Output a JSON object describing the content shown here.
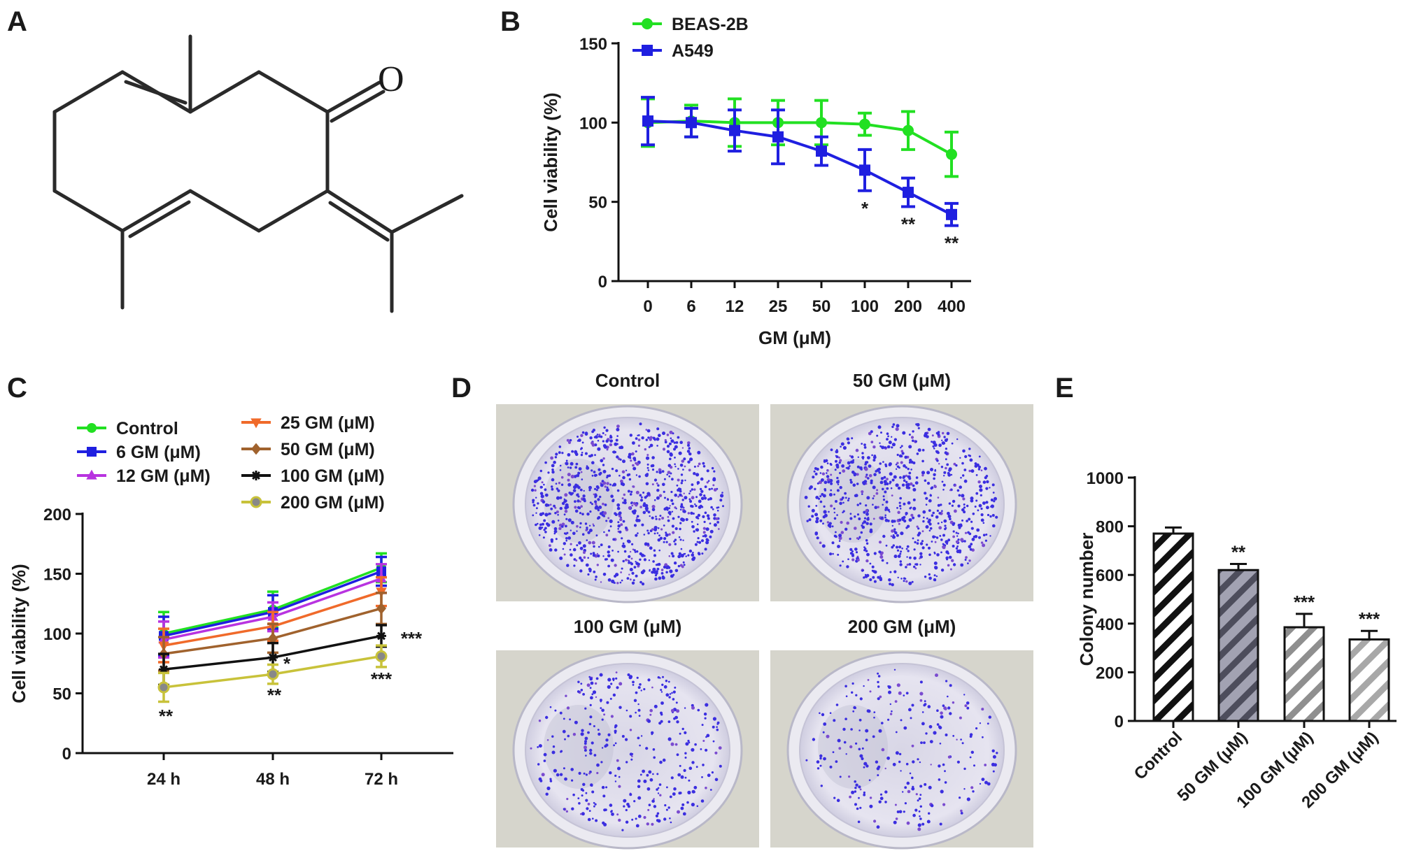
{
  "panels": {
    "A": "A",
    "B": "B",
    "C": "C",
    "D": "D",
    "E": "E"
  },
  "panel_a": {
    "atom_label": "O"
  },
  "colors": {
    "beas2b": "#22e022",
    "a549": "#1f1fe0"
  },
  "chart_data": [
    {
      "id": "B",
      "type": "line",
      "xlabel": "GM (μM)",
      "ylabel": "Cell viability (%)",
      "categories": [
        "0",
        "6",
        "12",
        "25",
        "50",
        "100",
        "200",
        "400"
      ],
      "ylim": [
        0,
        150
      ],
      "yticks": [
        "0",
        "50",
        "100",
        "150"
      ],
      "legend_position": "top-left",
      "series": [
        {
          "name": "BEAS-2B",
          "color": "#22e022",
          "marker": "circle",
          "values": [
            100,
            101,
            100,
            100,
            100,
            99,
            95,
            80
          ],
          "errors": [
            15,
            10,
            15,
            14,
            14,
            7,
            12,
            14
          ]
        },
        {
          "name": "A549",
          "color": "#1f1fe0",
          "marker": "square",
          "values": [
            101,
            100,
            95,
            91,
            82,
            70,
            56,
            42
          ],
          "errors": [
            15,
            9,
            13,
            17,
            9,
            13,
            9,
            7
          ]
        }
      ],
      "annotations": [
        {
          "category": "100",
          "text": "*"
        },
        {
          "category": "200",
          "text": "**"
        },
        {
          "category": "400",
          "text": "**"
        }
      ]
    },
    {
      "id": "C",
      "type": "line",
      "xlabel": "",
      "ylabel": "Cell viability (%)",
      "categories": [
        "24 h",
        "48 h",
        "72 h"
      ],
      "ylim": [
        0,
        200
      ],
      "yticks": [
        "0",
        "50",
        "100",
        "150",
        "200"
      ],
      "legend_position": "top",
      "series": [
        {
          "name": "Control",
          "color": "#22e022",
          "marker": "circle",
          "values": [
            100,
            120,
            155
          ],
          "errors": [
            18,
            15,
            12
          ]
        },
        {
          "name": "6 GM (μM)",
          "color": "#1f1fe0",
          "marker": "square",
          "values": [
            98,
            118,
            152
          ],
          "errors": [
            16,
            14,
            12
          ]
        },
        {
          "name": "12 GM (μM)",
          "color": "#b833e0",
          "marker": "triangle-up",
          "values": [
            95,
            114,
            146
          ],
          "errors": [
            15,
            12,
            12
          ]
        },
        {
          "name": "25 GM (μM)",
          "color": "#f06a2a",
          "marker": "triangle-down",
          "values": [
            90,
            106,
            135
          ],
          "errors": [
            14,
            12,
            12
          ]
        },
        {
          "name": "50 GM (μM)",
          "color": "#a0622d",
          "marker": "diamond",
          "values": [
            83,
            96,
            121
          ],
          "errors": [
            14,
            12,
            13
          ]
        },
        {
          "name": "100 GM (μM)",
          "color": "#111111",
          "marker": "star",
          "values": [
            70,
            80,
            98
          ],
          "errors": [
            13,
            12,
            9
          ]
        },
        {
          "name": "200 GM (μM)",
          "color": "#c8c23a",
          "marker": "circle-open",
          "values": [
            55,
            66,
            81
          ],
          "errors": [
            12,
            8,
            9
          ]
        }
      ],
      "annotations": [
        {
          "category": "24 h",
          "text": "**"
        },
        {
          "category": "48 h",
          "text": "*"
        },
        {
          "category": "48 h",
          "text": "**"
        },
        {
          "category": "72 h",
          "text": "***"
        },
        {
          "category": "72 h",
          "text": "***"
        }
      ]
    },
    {
      "id": "E",
      "type": "bar",
      "xlabel": "",
      "ylabel": "Colony number",
      "categories": [
        "Control",
        "50 GM (μM)",
        "100 GM (μM)",
        "200 GM (μM)"
      ],
      "ylim": [
        0,
        1000
      ],
      "yticks": [
        "0",
        "200",
        "400",
        "600",
        "800",
        "1000"
      ],
      "values": [
        770,
        620,
        385,
        335
      ],
      "errors": [
        25,
        25,
        55,
        35
      ],
      "bar_colors": [
        "#ffffff",
        "#7a7a88",
        "#c4c4c4",
        "#d8d8d8"
      ],
      "pattern": "diagonal-stripes",
      "annotations": [
        "",
        "**",
        "***",
        "***"
      ]
    }
  ],
  "panel_d": {
    "plates": [
      {
        "label": "Control",
        "colony_level": "high"
      },
      {
        "label": "50 GM (μM)",
        "colony_level": "medium-high"
      },
      {
        "label": "100 GM (μM)",
        "colony_level": "medium"
      },
      {
        "label": "200 GM (μM)",
        "colony_level": "low"
      }
    ]
  }
}
